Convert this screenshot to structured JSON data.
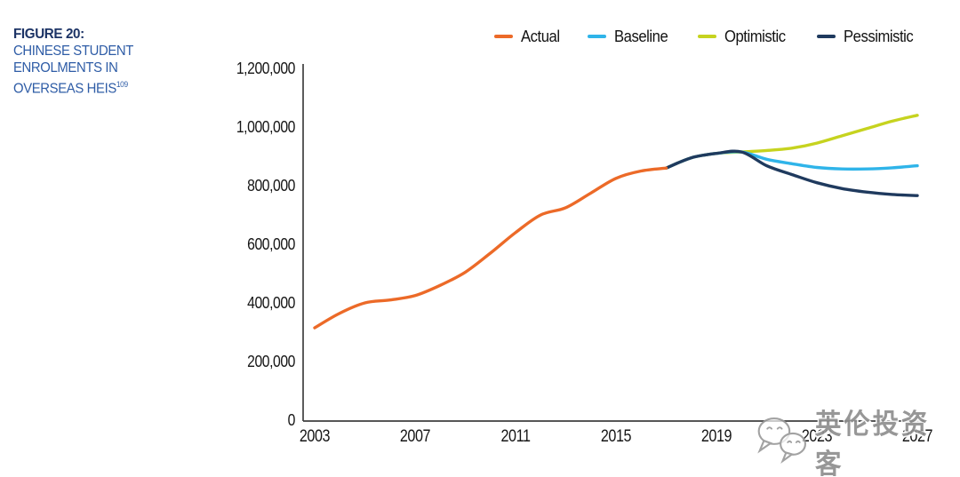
{
  "figure": {
    "label": "FIGURE 20:",
    "title_lines": [
      "CHINESE STUDENT",
      "ENROLMENTS IN",
      "OVERSEAS HEIS"
    ],
    "footnote_marker": "109",
    "label_color": "#1d3466",
    "title_color": "#2e5ca6"
  },
  "legend": {
    "items": [
      {
        "label": "Actual",
        "color": "#ec6a28"
      },
      {
        "label": "Baseline",
        "color": "#2fb4e9"
      },
      {
        "label": "Optimistic",
        "color": "#c6d31f"
      },
      {
        "label": "Pessimistic",
        "color": "#1f3a5e"
      }
    ]
  },
  "chart_data": {
    "type": "line",
    "title": "Chinese student enrolments in overseas HEIs (actual and forecast scenarios)",
    "xlabel": "",
    "ylabel": "",
    "xlim": [
      2003,
      2027
    ],
    "ylim": [
      0,
      1200000
    ],
    "grid": false,
    "legend_position": "top-right",
    "x_ticks": [
      2003,
      2007,
      2011,
      2015,
      2019,
      2023,
      2027
    ],
    "y_ticks": [
      {
        "value": 1200000,
        "label": "1,200,000"
      },
      {
        "value": 1000000,
        "label": "1,000,000"
      },
      {
        "value": 800000,
        "label": "800,000"
      },
      {
        "value": 600000,
        "label": "600,000"
      },
      {
        "value": 400000,
        "label": "400,000"
      },
      {
        "value": 200000,
        "label": "200,000"
      },
      {
        "value": 0,
        "label": "0"
      }
    ],
    "series": [
      {
        "name": "Actual",
        "color": "#ec6a28",
        "x": [
          2003,
          2004,
          2005,
          2006,
          2007,
          2008,
          2009,
          2010,
          2011,
          2012,
          2013,
          2014,
          2015,
          2016,
          2017
        ],
        "values": [
          315000,
          365000,
          400000,
          410000,
          425000,
          460000,
          505000,
          570000,
          640000,
          700000,
          725000,
          775000,
          825000,
          850000,
          860000
        ]
      },
      {
        "name": "Baseline",
        "color": "#2fb4e9",
        "x": [
          2017,
          2018,
          2019,
          2020,
          2021,
          2022,
          2023,
          2024,
          2025,
          2026,
          2027
        ],
        "values": [
          860000,
          895000,
          910000,
          915000,
          890000,
          875000,
          862000,
          857000,
          857000,
          861000,
          868000
        ]
      },
      {
        "name": "Optimistic",
        "color": "#c6d31f",
        "x": [
          2017,
          2018,
          2019,
          2020,
          2021,
          2022,
          2023,
          2024,
          2025,
          2026,
          2027
        ],
        "values": [
          860000,
          895000,
          910000,
          915000,
          920000,
          928000,
          945000,
          970000,
          995000,
          1020000,
          1040000
        ]
      },
      {
        "name": "Pessimistic",
        "color": "#1f3a5e",
        "x": [
          2017,
          2018,
          2019,
          2020,
          2021,
          2022,
          2023,
          2024,
          2025,
          2026,
          2027
        ],
        "values": [
          860000,
          895000,
          910000,
          915000,
          868000,
          838000,
          810000,
          790000,
          778000,
          770000,
          766000
        ]
      }
    ]
  },
  "watermark": {
    "text": "英伦投资客",
    "icon": "wechat-icon"
  }
}
